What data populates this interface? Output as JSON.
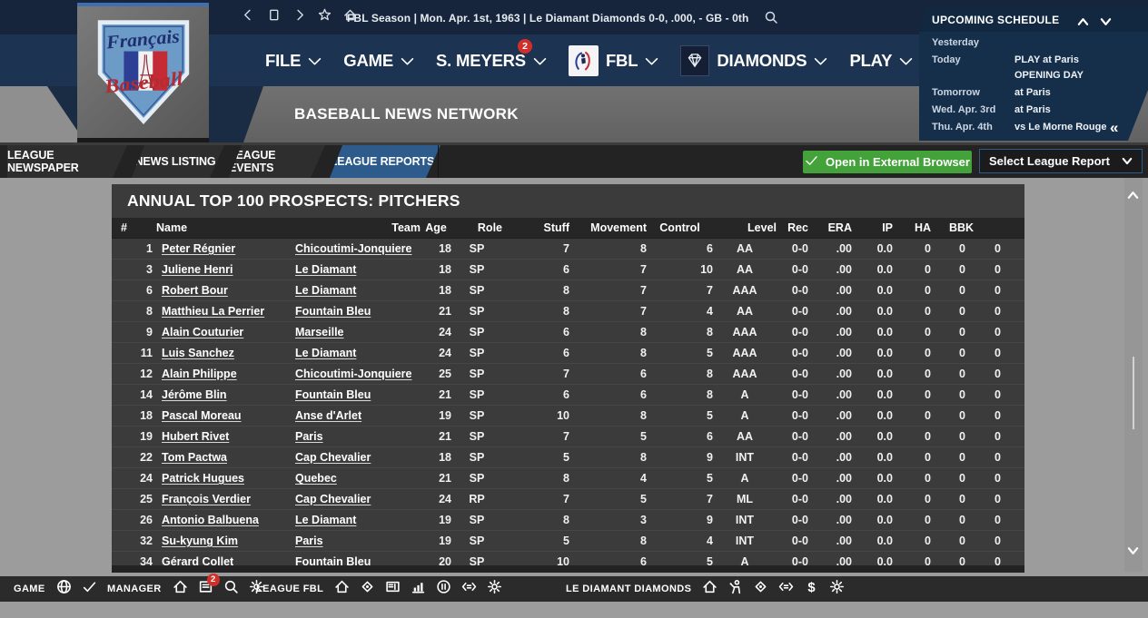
{
  "window": {
    "status_bar": "FBL Season  |  Mon. Apr. 1st, 1963  |  Le Diamant Diamonds   0-0, .000, - GB - 0th"
  },
  "league_logo": {
    "line1": "Français",
    "line2": "Baseball"
  },
  "menus": {
    "file": "FILE",
    "game": "GAME",
    "manager": "S. MEYERS",
    "manager_badge": "2",
    "league": "FBL",
    "team": "DIAMONDS",
    "play": "PLAY"
  },
  "subheader": {
    "title": "BASEBALL NEWS NETWORK"
  },
  "schedule": {
    "title": "UPCOMING SCHEDULE",
    "rows": [
      {
        "when": "Yesterday",
        "what": ""
      },
      {
        "when": "Today",
        "what": "PLAY at Paris",
        "what2": "OPENING DAY"
      },
      {
        "when": "Tomorrow",
        "what": "at Paris"
      },
      {
        "when": "Wed. Apr. 3rd",
        "what": "at Paris"
      },
      {
        "when": "Thu. Apr. 4th",
        "what": "vs Le Morne Rouge"
      }
    ]
  },
  "tabs": [
    {
      "label": "LEAGUE NEWSPAPER",
      "active": false
    },
    {
      "label": "NEWS LISTING",
      "active": false
    },
    {
      "label": "LEAGUE EVENTS",
      "active": false
    },
    {
      "label": "LEAGUE REPORTS",
      "active": true
    }
  ],
  "actions": {
    "open_external": "Open in External Browser",
    "select_report": "Select League Report"
  },
  "report": {
    "title": "ANNUAL TOP 100 PROSPECTS: PITCHERS",
    "columns": [
      "#",
      "Name",
      "Team",
      "Age",
      "Role",
      "Stuff",
      "Movement",
      "Control",
      "Level",
      "Rec",
      "ERA",
      "IP",
      "HA",
      "BB",
      "K"
    ],
    "rows": [
      {
        "rank": "1",
        "name": "Peter Régnier",
        "team": "Chicoutimi-Jonquiere",
        "age": "18",
        "role": "SP",
        "stuff": "7",
        "movement": "8",
        "control": "6",
        "level": "AA",
        "rec": "0-0",
        "era": ".00",
        "ip": "0.0",
        "ha": "0",
        "bb": "0",
        "k": "0"
      },
      {
        "rank": "3",
        "name": "Juliene Henri",
        "team": "Le Diamant",
        "age": "18",
        "role": "SP",
        "stuff": "6",
        "movement": "7",
        "control": "10",
        "level": "AA",
        "rec": "0-0",
        "era": ".00",
        "ip": "0.0",
        "ha": "0",
        "bb": "0",
        "k": "0"
      },
      {
        "rank": "6",
        "name": "Robert Bour",
        "team": "Le Diamant",
        "age": "18",
        "role": "SP",
        "stuff": "8",
        "movement": "7",
        "control": "7",
        "level": "AAA",
        "rec": "0-0",
        "era": ".00",
        "ip": "0.0",
        "ha": "0",
        "bb": "0",
        "k": "0"
      },
      {
        "rank": "8",
        "name": "Matthieu La Perrier",
        "team": "Fountain Bleu",
        "age": "21",
        "role": "SP",
        "stuff": "8",
        "movement": "7",
        "control": "4",
        "level": "AA",
        "rec": "0-0",
        "era": ".00",
        "ip": "0.0",
        "ha": "0",
        "bb": "0",
        "k": "0"
      },
      {
        "rank": "9",
        "name": "Alain Couturier",
        "team": "Marseille",
        "age": "24",
        "role": "SP",
        "stuff": "6",
        "movement": "8",
        "control": "8",
        "level": "AAA",
        "rec": "0-0",
        "era": ".00",
        "ip": "0.0",
        "ha": "0",
        "bb": "0",
        "k": "0"
      },
      {
        "rank": "11",
        "name": "Luis Sanchez",
        "team": "Le Diamant",
        "age": "24",
        "role": "SP",
        "stuff": "6",
        "movement": "8",
        "control": "5",
        "level": "AAA",
        "rec": "0-0",
        "era": ".00",
        "ip": "0.0",
        "ha": "0",
        "bb": "0",
        "k": "0"
      },
      {
        "rank": "12",
        "name": "Alain Philippe",
        "team": "Chicoutimi-Jonquiere",
        "age": "25",
        "role": "SP",
        "stuff": "7",
        "movement": "6",
        "control": "8",
        "level": "AAA",
        "rec": "0-0",
        "era": ".00",
        "ip": "0.0",
        "ha": "0",
        "bb": "0",
        "k": "0"
      },
      {
        "rank": "14",
        "name": "Jérôme Blin",
        "team": "Fountain Bleu",
        "age": "21",
        "role": "SP",
        "stuff": "6",
        "movement": "6",
        "control": "8",
        "level": "A",
        "rec": "0-0",
        "era": ".00",
        "ip": "0.0",
        "ha": "0",
        "bb": "0",
        "k": "0"
      },
      {
        "rank": "18",
        "name": "Pascal Moreau",
        "team": "Anse d'Arlet",
        "age": "19",
        "role": "SP",
        "stuff": "10",
        "movement": "8",
        "control": "5",
        "level": "A",
        "rec": "0-0",
        "era": ".00",
        "ip": "0.0",
        "ha": "0",
        "bb": "0",
        "k": "0"
      },
      {
        "rank": "19",
        "name": "Hubert Rivet",
        "team": "Paris",
        "age": "21",
        "role": "SP",
        "stuff": "7",
        "movement": "5",
        "control": "6",
        "level": "AA",
        "rec": "0-0",
        "era": ".00",
        "ip": "0.0",
        "ha": "0",
        "bb": "0",
        "k": "0"
      },
      {
        "rank": "22",
        "name": "Tom Pactwa",
        "team": "Cap Chevalier",
        "age": "18",
        "role": "SP",
        "stuff": "5",
        "movement": "8",
        "control": "9",
        "level": "INT",
        "rec": "0-0",
        "era": ".00",
        "ip": "0.0",
        "ha": "0",
        "bb": "0",
        "k": "0"
      },
      {
        "rank": "24",
        "name": "Patrick Hugues",
        "team": "Quebec",
        "age": "21",
        "role": "SP",
        "stuff": "8",
        "movement": "4",
        "control": "5",
        "level": "A",
        "rec": "0-0",
        "era": ".00",
        "ip": "0.0",
        "ha": "0",
        "bb": "0",
        "k": "0"
      },
      {
        "rank": "25",
        "name": "François Verdier",
        "team": "Cap Chevalier",
        "age": "24",
        "role": "RP",
        "stuff": "7",
        "movement": "5",
        "control": "7",
        "level": "ML",
        "rec": "0-0",
        "era": ".00",
        "ip": "0.0",
        "ha": "0",
        "bb": "0",
        "k": "0"
      },
      {
        "rank": "26",
        "name": "Antonio Balbuena",
        "team": "Le Diamant",
        "age": "19",
        "role": "SP",
        "stuff": "8",
        "movement": "3",
        "control": "9",
        "level": "INT",
        "rec": "0-0",
        "era": ".00",
        "ip": "0.0",
        "ha": "0",
        "bb": "0",
        "k": "0"
      },
      {
        "rank": "32",
        "name": "Su-kyung Kim",
        "team": "Paris",
        "age": "19",
        "role": "SP",
        "stuff": "5",
        "movement": "8",
        "control": "4",
        "level": "INT",
        "rec": "0-0",
        "era": ".00",
        "ip": "0.0",
        "ha": "0",
        "bb": "0",
        "k": "0"
      },
      {
        "rank": "34",
        "name": "Gérard Collet",
        "team": "Fountain Bleu",
        "age": "20",
        "role": "SP",
        "stuff": "10",
        "movement": "6",
        "control": "5",
        "level": "A",
        "rec": "0-0",
        "era": ".00",
        "ip": "0.0",
        "ha": "0",
        "bb": "0",
        "k": "0"
      }
    ]
  },
  "toolbar": {
    "sections": [
      {
        "label": "GAME",
        "icons": [
          {
            "name": "globe"
          },
          {
            "name": "check"
          }
        ]
      },
      {
        "label": "MANAGER",
        "icons": [
          {
            "name": "home"
          },
          {
            "name": "news",
            "badge": "2"
          },
          {
            "name": "search"
          },
          {
            "name": "settings"
          }
        ]
      },
      {
        "label": "LEAGUE FBL",
        "icons": [
          {
            "name": "home"
          },
          {
            "name": "location"
          },
          {
            "name": "scoreboard"
          },
          {
            "name": "stats"
          },
          {
            "name": "standings"
          },
          {
            "name": "transactions"
          },
          {
            "name": "settings"
          }
        ]
      },
      {
        "label": "LE DIAMANT DIAMONDS",
        "icons": [
          {
            "name": "home"
          },
          {
            "name": "manager"
          },
          {
            "name": "location"
          },
          {
            "name": "transactions"
          },
          {
            "name": "finances"
          },
          {
            "name": "settings"
          }
        ]
      }
    ]
  },
  "colors": {
    "accent_blue": "#2d5c8c",
    "action_green": "#44a23a",
    "badge_red": "#d22f2a",
    "header_navy": "#1c3452",
    "panel_gray": "#3b3b3b"
  }
}
